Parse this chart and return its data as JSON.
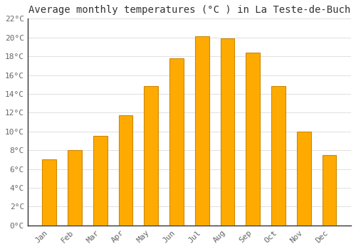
{
  "title": "Average monthly temperatures (°C ) in La Teste-de-Buch",
  "months": [
    "Jan",
    "Feb",
    "Mar",
    "Apr",
    "May",
    "Jun",
    "Jul",
    "Aug",
    "Sep",
    "Oct",
    "Nov",
    "Dec"
  ],
  "temperatures": [
    7.0,
    8.0,
    9.5,
    11.7,
    14.8,
    17.8,
    20.1,
    19.9,
    18.4,
    14.8,
    10.0,
    7.5
  ],
  "bar_color": "#FFAA00",
  "bar_edge_color": "#CC8800",
  "ylim": [
    0,
    22
  ],
  "yticks": [
    0,
    2,
    4,
    6,
    8,
    10,
    12,
    14,
    16,
    18,
    20,
    22
  ],
  "ytick_labels": [
    "0°C",
    "2°C",
    "4°C",
    "6°C",
    "8°C",
    "10°C",
    "12°C",
    "14°C",
    "16°C",
    "18°C",
    "20°C",
    "22°C"
  ],
  "background_color": "#ffffff",
  "grid_color": "#e0e0e0",
  "title_fontsize": 10,
  "tick_fontsize": 8,
  "font_family": "monospace",
  "bar_width": 0.55
}
